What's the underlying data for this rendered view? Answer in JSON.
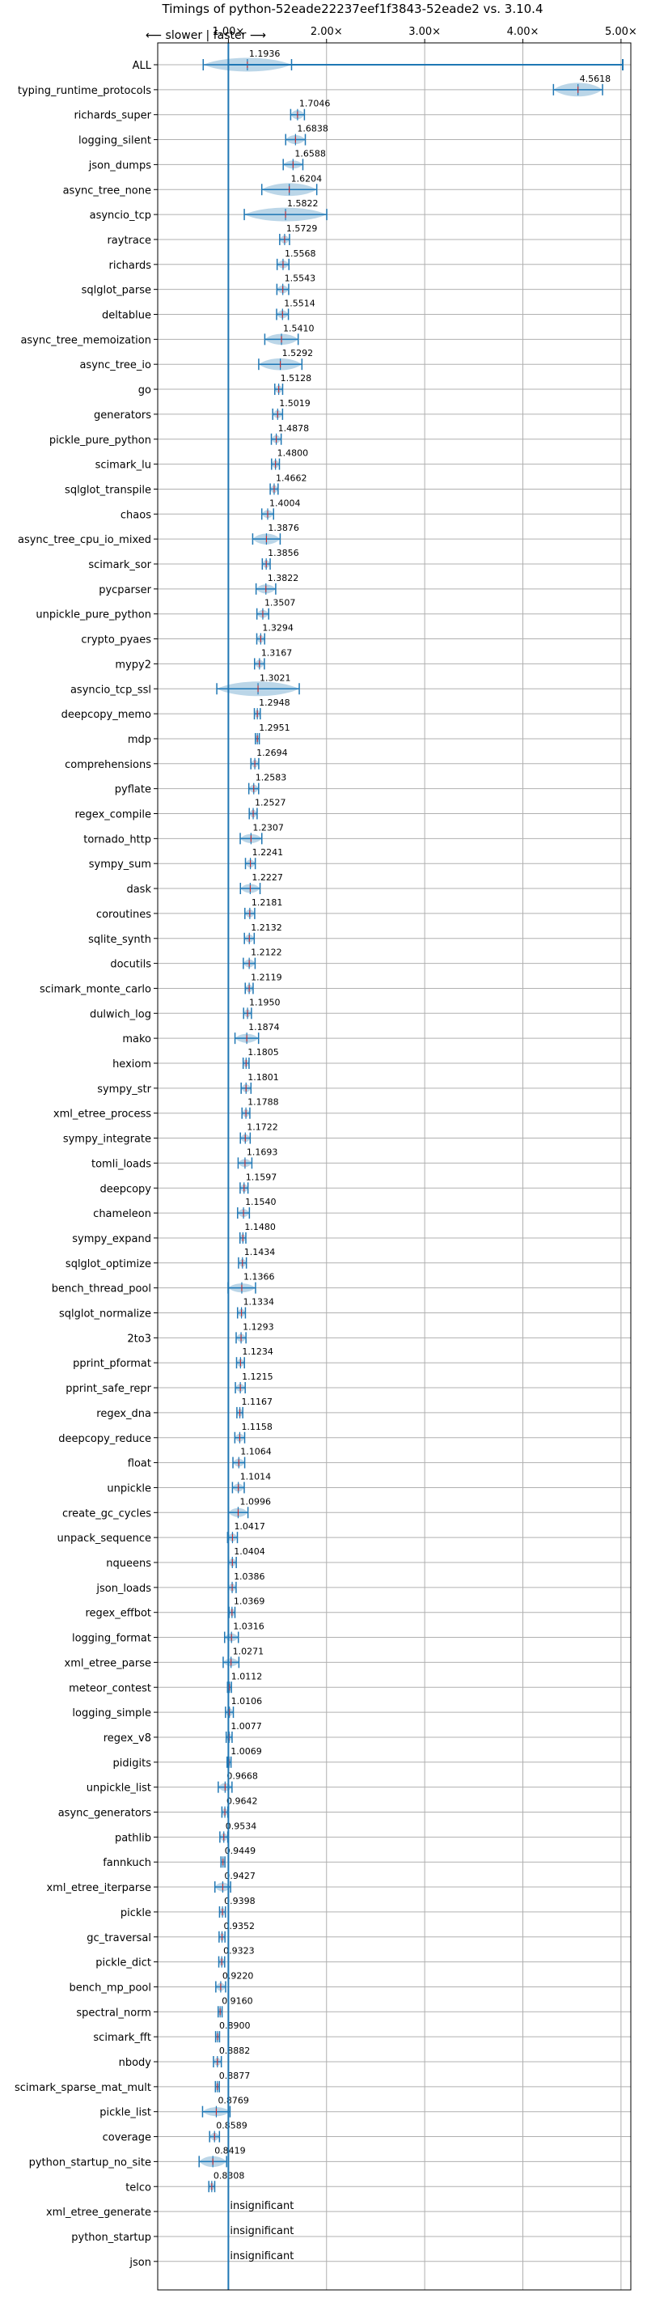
{
  "chart_data": {
    "type": "violin",
    "title": "Timings of python-52eade22237eef1f3843-52eade2 vs. 3.10.4",
    "direction_label": "⟵ slower | faster ⟶",
    "x_ticks": [
      "1.00×",
      "2.00×",
      "3.00×",
      "4.00×",
      "5.00×"
    ],
    "xlim": [
      0.28,
      5.1
    ],
    "insignificant_label": "insignificant",
    "benchmarks": [
      {
        "name": "ALL",
        "value": 1.1936,
        "label": "1.1936",
        "spread": 0.45,
        "width": 0.6
      },
      {
        "name": "typing_runtime_protocols",
        "value": 4.5618,
        "label": "4.5618",
        "spread": 0.25,
        "width": 0.6
      },
      {
        "name": "richards_super",
        "value": 1.7046,
        "label": "1.7046",
        "spread": 0.07,
        "width": 0.35
      },
      {
        "name": "logging_silent",
        "value": 1.6838,
        "label": "1.6838",
        "spread": 0.1,
        "width": 0.35
      },
      {
        "name": "json_dumps",
        "value": 1.6588,
        "label": "1.6588",
        "spread": 0.1,
        "width": 0.3
      },
      {
        "name": "async_tree_none",
        "value": 1.6204,
        "label": "1.6204",
        "spread": 0.28,
        "width": 0.55
      },
      {
        "name": "asyncio_tcp",
        "value": 1.5822,
        "label": "1.5822",
        "spread": 0.42,
        "width": 0.6
      },
      {
        "name": "raytrace",
        "value": 1.5729,
        "label": "1.5729",
        "spread": 0.05,
        "width": 0.3
      },
      {
        "name": "richards",
        "value": 1.5568,
        "label": "1.5568",
        "spread": 0.06,
        "width": 0.3
      },
      {
        "name": "sqlglot_parse",
        "value": 1.5543,
        "label": "1.5543",
        "spread": 0.06,
        "width": 0.3
      },
      {
        "name": "deltablue",
        "value": 1.5514,
        "label": "1.5514",
        "spread": 0.06,
        "width": 0.3
      },
      {
        "name": "async_tree_memoization",
        "value": 1.541,
        "label": "1.5410",
        "spread": 0.17,
        "width": 0.45
      },
      {
        "name": "async_tree_io",
        "value": 1.5292,
        "label": "1.5292",
        "spread": 0.22,
        "width": 0.5
      },
      {
        "name": "go",
        "value": 1.5128,
        "label": "1.5128",
        "spread": 0.04,
        "width": 0.3
      },
      {
        "name": "generators",
        "value": 1.5019,
        "label": "1.5019",
        "spread": 0.05,
        "width": 0.3
      },
      {
        "name": "pickle_pure_python",
        "value": 1.4878,
        "label": "1.4878",
        "spread": 0.05,
        "width": 0.3
      },
      {
        "name": "scimark_lu",
        "value": 1.48,
        "label": "1.4800",
        "spread": 0.04,
        "width": 0.3
      },
      {
        "name": "sqlglot_transpile",
        "value": 1.4662,
        "label": "1.4662",
        "spread": 0.04,
        "width": 0.3
      },
      {
        "name": "chaos",
        "value": 1.4004,
        "label": "1.4004",
        "spread": 0.06,
        "width": 0.3
      },
      {
        "name": "async_tree_cpu_io_mixed",
        "value": 1.3876,
        "label": "1.3876",
        "spread": 0.14,
        "width": 0.45
      },
      {
        "name": "scimark_sor",
        "value": 1.3856,
        "label": "1.3856",
        "spread": 0.04,
        "width": 0.3
      },
      {
        "name": "pycparser",
        "value": 1.3822,
        "label": "1.3822",
        "spread": 0.1,
        "width": 0.35
      },
      {
        "name": "unpickle_pure_python",
        "value": 1.3507,
        "label": "1.3507",
        "spread": 0.06,
        "width": 0.3
      },
      {
        "name": "crypto_pyaes",
        "value": 1.3294,
        "label": "1.3294",
        "spread": 0.04,
        "width": 0.3
      },
      {
        "name": "mypy2",
        "value": 1.3167,
        "label": "1.3167",
        "spread": 0.05,
        "width": 0.3
      },
      {
        "name": "asyncio_tcp_ssl",
        "value": 1.3021,
        "label": "1.3021",
        "spread": 0.42,
        "width": 0.65
      },
      {
        "name": "deepcopy_memo",
        "value": 1.2948,
        "label": "1.2948",
        "spread": 0.03,
        "width": 0.3
      },
      {
        "name": "mdp",
        "value": 1.2951,
        "label": "1.2951",
        "spread": 0.02,
        "width": 0.3
      },
      {
        "name": "comprehensions",
        "value": 1.2694,
        "label": "1.2694",
        "spread": 0.04,
        "width": 0.3
      },
      {
        "name": "pyflate",
        "value": 1.2583,
        "label": "1.2583",
        "spread": 0.05,
        "width": 0.3
      },
      {
        "name": "regex_compile",
        "value": 1.2527,
        "label": "1.2527",
        "spread": 0.04,
        "width": 0.3
      },
      {
        "name": "tornado_http",
        "value": 1.2307,
        "label": "1.2307",
        "spread": 0.11,
        "width": 0.35
      },
      {
        "name": "sympy_sum",
        "value": 1.2241,
        "label": "1.2241",
        "spread": 0.05,
        "width": 0.3
      },
      {
        "name": "dask",
        "value": 1.2227,
        "label": "1.2227",
        "spread": 0.1,
        "width": 0.35
      },
      {
        "name": "coroutines",
        "value": 1.2181,
        "label": "1.2181",
        "spread": 0.05,
        "width": 0.3
      },
      {
        "name": "sqlite_synth",
        "value": 1.2132,
        "label": "1.2132",
        "spread": 0.05,
        "width": 0.3
      },
      {
        "name": "docutils",
        "value": 1.2122,
        "label": "1.2122",
        "spread": 0.06,
        "width": 0.3
      },
      {
        "name": "scimark_monte_carlo",
        "value": 1.2119,
        "label": "1.2119",
        "spread": 0.04,
        "width": 0.3
      },
      {
        "name": "dulwich_log",
        "value": 1.195,
        "label": "1.1950",
        "spread": 0.04,
        "width": 0.3
      },
      {
        "name": "mako",
        "value": 1.1874,
        "label": "1.1874",
        "spread": 0.12,
        "width": 0.35
      },
      {
        "name": "hexiom",
        "value": 1.1805,
        "label": "1.1805",
        "spread": 0.03,
        "width": 0.3
      },
      {
        "name": "sympy_str",
        "value": 1.1801,
        "label": "1.1801",
        "spread": 0.05,
        "width": 0.3
      },
      {
        "name": "xml_etree_process",
        "value": 1.1788,
        "label": "1.1788",
        "spread": 0.04,
        "width": 0.3
      },
      {
        "name": "sympy_integrate",
        "value": 1.1722,
        "label": "1.1722",
        "spread": 0.05,
        "width": 0.3
      },
      {
        "name": "tomli_loads",
        "value": 1.1693,
        "label": "1.1693",
        "spread": 0.07,
        "width": 0.3
      },
      {
        "name": "deepcopy",
        "value": 1.1597,
        "label": "1.1597",
        "spread": 0.04,
        "width": 0.3
      },
      {
        "name": "chameleon",
        "value": 1.154,
        "label": "1.1540",
        "spread": 0.06,
        "width": 0.3
      },
      {
        "name": "sympy_expand",
        "value": 1.148,
        "label": "1.1480",
        "spread": 0.03,
        "width": 0.3
      },
      {
        "name": "sqlglot_optimize",
        "value": 1.1434,
        "label": "1.1434",
        "spread": 0.04,
        "width": 0.3
      },
      {
        "name": "bench_thread_pool",
        "value": 1.1366,
        "label": "1.1366",
        "spread": 0.14,
        "width": 0.35
      },
      {
        "name": "sqlglot_normalize",
        "value": 1.1334,
        "label": "1.1334",
        "spread": 0.04,
        "width": 0.3
      },
      {
        "name": "2to3",
        "value": 1.1293,
        "label": "1.1293",
        "spread": 0.05,
        "width": 0.3
      },
      {
        "name": "pprint_pformat",
        "value": 1.1234,
        "label": "1.1234",
        "spread": 0.04,
        "width": 0.3
      },
      {
        "name": "pprint_safe_repr",
        "value": 1.1215,
        "label": "1.1215",
        "spread": 0.05,
        "width": 0.3
      },
      {
        "name": "regex_dna",
        "value": 1.1167,
        "label": "1.1167",
        "spread": 0.03,
        "width": 0.3
      },
      {
        "name": "deepcopy_reduce",
        "value": 1.1158,
        "label": "1.1158",
        "spread": 0.05,
        "width": 0.3
      },
      {
        "name": "float",
        "value": 1.1064,
        "label": "1.1064",
        "spread": 0.06,
        "width": 0.3
      },
      {
        "name": "unpickle",
        "value": 1.1014,
        "label": "1.1014",
        "spread": 0.06,
        "width": 0.3
      },
      {
        "name": "create_gc_cycles",
        "value": 1.0996,
        "label": "1.0996",
        "spread": 0.1,
        "width": 0.35
      },
      {
        "name": "unpack_sequence",
        "value": 1.0417,
        "label": "1.0417",
        "spread": 0.05,
        "width": 0.3
      },
      {
        "name": "nqueens",
        "value": 1.0404,
        "label": "1.0404",
        "spread": 0.04,
        "width": 0.3
      },
      {
        "name": "json_loads",
        "value": 1.0386,
        "label": "1.0386",
        "spread": 0.04,
        "width": 0.3
      },
      {
        "name": "regex_effbot",
        "value": 1.0369,
        "label": "1.0369",
        "spread": 0.03,
        "width": 0.3
      },
      {
        "name": "logging_format",
        "value": 1.0316,
        "label": "1.0316",
        "spread": 0.07,
        "width": 0.3
      },
      {
        "name": "xml_etree_parse",
        "value": 1.0271,
        "label": "1.0271",
        "spread": 0.08,
        "width": 0.3
      },
      {
        "name": "meteor_contest",
        "value": 1.0112,
        "label": "1.0112",
        "spread": 0.02,
        "width": 0.3
      },
      {
        "name": "logging_simple",
        "value": 1.0106,
        "label": "1.0106",
        "spread": 0.04,
        "width": 0.3
      },
      {
        "name": "regex_v8",
        "value": 1.0077,
        "label": "1.0077",
        "spread": 0.03,
        "width": 0.3
      },
      {
        "name": "pidigits",
        "value": 1.0069,
        "label": "1.0069",
        "spread": 0.02,
        "width": 0.3
      },
      {
        "name": "unpickle_list",
        "value": 0.9668,
        "label": "0.9668",
        "spread": 0.07,
        "width": 0.3
      },
      {
        "name": "async_generators",
        "value": 0.9642,
        "label": "0.9642",
        "spread": 0.03,
        "width": 0.3
      },
      {
        "name": "pathlib",
        "value": 0.9534,
        "label": "0.9534",
        "spread": 0.04,
        "width": 0.3
      },
      {
        "name": "fannkuch",
        "value": 0.9449,
        "label": "0.9449",
        "spread": 0.02,
        "width": 0.3
      },
      {
        "name": "xml_etree_iterparse",
        "value": 0.9427,
        "label": "0.9427",
        "spread": 0.08,
        "width": 0.35
      },
      {
        "name": "pickle",
        "value": 0.9398,
        "label": "0.9398",
        "spread": 0.03,
        "width": 0.3
      },
      {
        "name": "gc_traversal",
        "value": 0.9352,
        "label": "0.9352",
        "spread": 0.03,
        "width": 0.3
      },
      {
        "name": "pickle_dict",
        "value": 0.9323,
        "label": "0.9323",
        "spread": 0.03,
        "width": 0.3
      },
      {
        "name": "bench_mp_pool",
        "value": 0.922,
        "label": "0.9220",
        "spread": 0.05,
        "width": 0.3
      },
      {
        "name": "spectral_norm",
        "value": 0.916,
        "label": "0.9160",
        "spread": 0.02,
        "width": 0.3
      },
      {
        "name": "scimark_fft",
        "value": 0.89,
        "label": "0.8900",
        "spread": 0.02,
        "width": 0.3
      },
      {
        "name": "nbody",
        "value": 0.8882,
        "label": "0.8882",
        "spread": 0.04,
        "width": 0.3
      },
      {
        "name": "scimark_sparse_mat_mult",
        "value": 0.8877,
        "label": "0.8877",
        "spread": 0.02,
        "width": 0.3
      },
      {
        "name": "pickle_list",
        "value": 0.8769,
        "label": "0.8769",
        "spread": 0.14,
        "width": 0.35
      },
      {
        "name": "coverage",
        "value": 0.8589,
        "label": "0.8589",
        "spread": 0.05,
        "width": 0.3
      },
      {
        "name": "python_startup_no_site",
        "value": 0.8419,
        "label": "0.8419",
        "spread": 0.14,
        "width": 0.45
      },
      {
        "name": "telco",
        "value": 0.8308,
        "label": "0.8308",
        "spread": 0.03,
        "width": 0.3
      },
      {
        "name": "xml_etree_generate",
        "value": null,
        "label": "insignificant"
      },
      {
        "name": "python_startup",
        "value": null,
        "label": "insignificant"
      },
      {
        "name": "json",
        "value": null,
        "label": "insignificant"
      }
    ]
  }
}
